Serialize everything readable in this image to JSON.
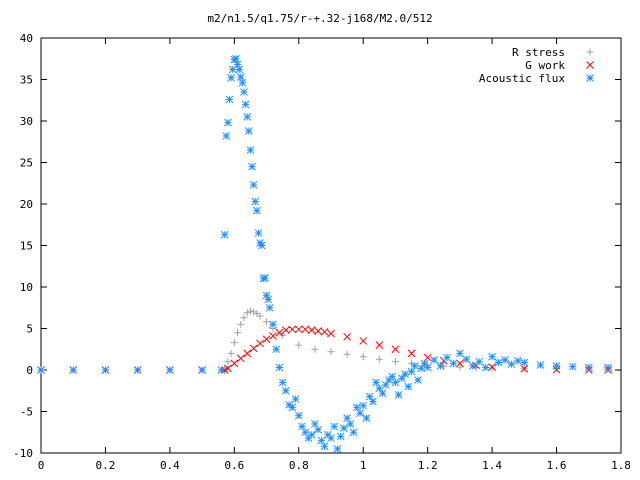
{
  "chart_data": {
    "type": "scatter",
    "title": "m2/n1.5/q1.75/r-+.32-j168/M2.0/512",
    "xlabel": "",
    "ylabel": "",
    "xlim": [
      0,
      1.8
    ],
    "ylim": [
      -10,
      40
    ],
    "x_ticks": [
      "0",
      "0.2",
      "0.4",
      "0.6",
      "0.8",
      "1",
      "1.2",
      "1.4",
      "1.6",
      "1.8"
    ],
    "y_ticks": [
      "-10",
      "-5",
      "0",
      "5",
      "10",
      "15",
      "20",
      "25",
      "30",
      "35",
      "40"
    ],
    "grid": false,
    "legend_position": "top-right",
    "series": [
      {
        "name": "R stress",
        "marker": "+",
        "color": "#a0a0a0",
        "x": [
          0.0,
          0.1,
          0.2,
          0.3,
          0.4,
          0.5,
          0.57,
          0.58,
          0.59,
          0.6,
          0.61,
          0.62,
          0.63,
          0.64,
          0.65,
          0.66,
          0.67,
          0.68,
          0.7,
          0.72,
          0.75,
          0.8,
          0.85,
          0.9,
          0.95,
          1.0,
          1.05,
          1.1,
          1.15,
          1.2,
          1.25,
          1.3,
          1.35,
          1.4,
          1.5,
          1.6,
          1.7,
          1.76
        ],
        "y": [
          0,
          0,
          0,
          0,
          0,
          0,
          0,
          1.0,
          2.0,
          3.3,
          4.5,
          5.5,
          6.3,
          6.9,
          7.1,
          7.0,
          6.8,
          6.5,
          5.8,
          5.0,
          4.2,
          3.0,
          2.5,
          2.2,
          1.9,
          1.6,
          1.3,
          1.0,
          0.8,
          0.6,
          0.45,
          0.35,
          0.3,
          0.25,
          0.2,
          0.2,
          0.2,
          0.2
        ]
      },
      {
        "name": "G work",
        "marker": "x",
        "color": "#ff0000",
        "x": [
          0.0,
          0.1,
          0.2,
          0.3,
          0.4,
          0.5,
          0.57,
          0.58,
          0.6,
          0.62,
          0.64,
          0.66,
          0.68,
          0.7,
          0.72,
          0.74,
          0.76,
          0.78,
          0.8,
          0.82,
          0.84,
          0.86,
          0.88,
          0.9,
          0.95,
          1.0,
          1.05,
          1.1,
          1.15,
          1.2,
          1.25,
          1.3,
          1.35,
          1.4,
          1.5,
          1.6,
          1.7,
          1.76
        ],
        "y": [
          0,
          0,
          0,
          0,
          0,
          0,
          0,
          0.2,
          0.8,
          1.4,
          2.0,
          2.6,
          3.2,
          3.7,
          4.1,
          4.5,
          4.8,
          4.9,
          4.9,
          4.9,
          4.8,
          4.7,
          4.6,
          4.4,
          4.0,
          3.5,
          3.0,
          2.5,
          2.0,
          1.5,
          1.1,
          0.8,
          0.55,
          0.35,
          0.15,
          0.05,
          0.0,
          0.0
        ]
      },
      {
        "name": "Acoustic flux",
        "marker": "*",
        "color": "#1e90ff",
        "x": [
          0.0,
          0.1,
          0.2,
          0.3,
          0.4,
          0.5,
          0.56,
          0.57,
          0.575,
          0.58,
          0.585,
          0.59,
          0.595,
          0.6,
          0.605,
          0.61,
          0.615,
          0.62,
          0.625,
          0.63,
          0.635,
          0.64,
          0.645,
          0.65,
          0.655,
          0.66,
          0.665,
          0.67,
          0.675,
          0.68,
          0.685,
          0.69,
          0.695,
          0.7,
          0.705,
          0.71,
          0.72,
          0.73,
          0.74,
          0.75,
          0.76,
          0.77,
          0.78,
          0.79,
          0.8,
          0.81,
          0.82,
          0.83,
          0.84,
          0.85,
          0.86,
          0.87,
          0.88,
          0.89,
          0.9,
          0.91,
          0.92,
          0.93,
          0.94,
          0.95,
          0.96,
          0.97,
          0.98,
          0.99,
          1.0,
          1.01,
          1.02,
          1.03,
          1.04,
          1.05,
          1.06,
          1.07,
          1.08,
          1.09,
          1.1,
          1.11,
          1.12,
          1.13,
          1.14,
          1.15,
          1.16,
          1.17,
          1.18,
          1.19,
          1.2,
          1.22,
          1.24,
          1.26,
          1.28,
          1.3,
          1.32,
          1.34,
          1.36,
          1.38,
          1.4,
          1.42,
          1.44,
          1.46,
          1.48,
          1.5,
          1.55,
          1.6,
          1.65,
          1.7,
          1.76
        ],
        "y": [
          0,
          0,
          0,
          0,
          0,
          0,
          0,
          16.3,
          28.2,
          29.8,
          32.6,
          35.2,
          36.2,
          37.4,
          37.5,
          36.8,
          36.2,
          35.3,
          34.6,
          33.5,
          32.0,
          30.5,
          28.8,
          26.5,
          24.5,
          22.3,
          20.3,
          19.2,
          16.5,
          15.3,
          15.0,
          11.0,
          11.1,
          9.0,
          8.5,
          7.5,
          5.5,
          2.5,
          0.3,
          -1.5,
          -2.5,
          -4.2,
          -4.5,
          -3.5,
          -5.5,
          -6.8,
          -7.5,
          -8.2,
          -7.8,
          -6.5,
          -7.2,
          -8.5,
          -9.2,
          -7.8,
          -8.2,
          -6.8,
          -9.5,
          -8.0,
          -7.0,
          -5.8,
          -6.5,
          -7.5,
          -4.5,
          -5.2,
          -4.3,
          -5.8,
          -3.2,
          -3.8,
          -1.5,
          -2.2,
          -2.8,
          -1.8,
          -1.2,
          -0.8,
          -1.5,
          -3.0,
          -1.0,
          -0.5,
          -2.0,
          -0.2,
          0.5,
          -1.2,
          0.2,
          0.8,
          0.3,
          1.2,
          0.5,
          1.5,
          0.8,
          2.0,
          1.3,
          0.5,
          1.0,
          0.3,
          1.6,
          0.9,
          1.2,
          0.7,
          1.1,
          0.9,
          0.6,
          0.5,
          0.4,
          0.3,
          0.3
        ]
      }
    ]
  }
}
